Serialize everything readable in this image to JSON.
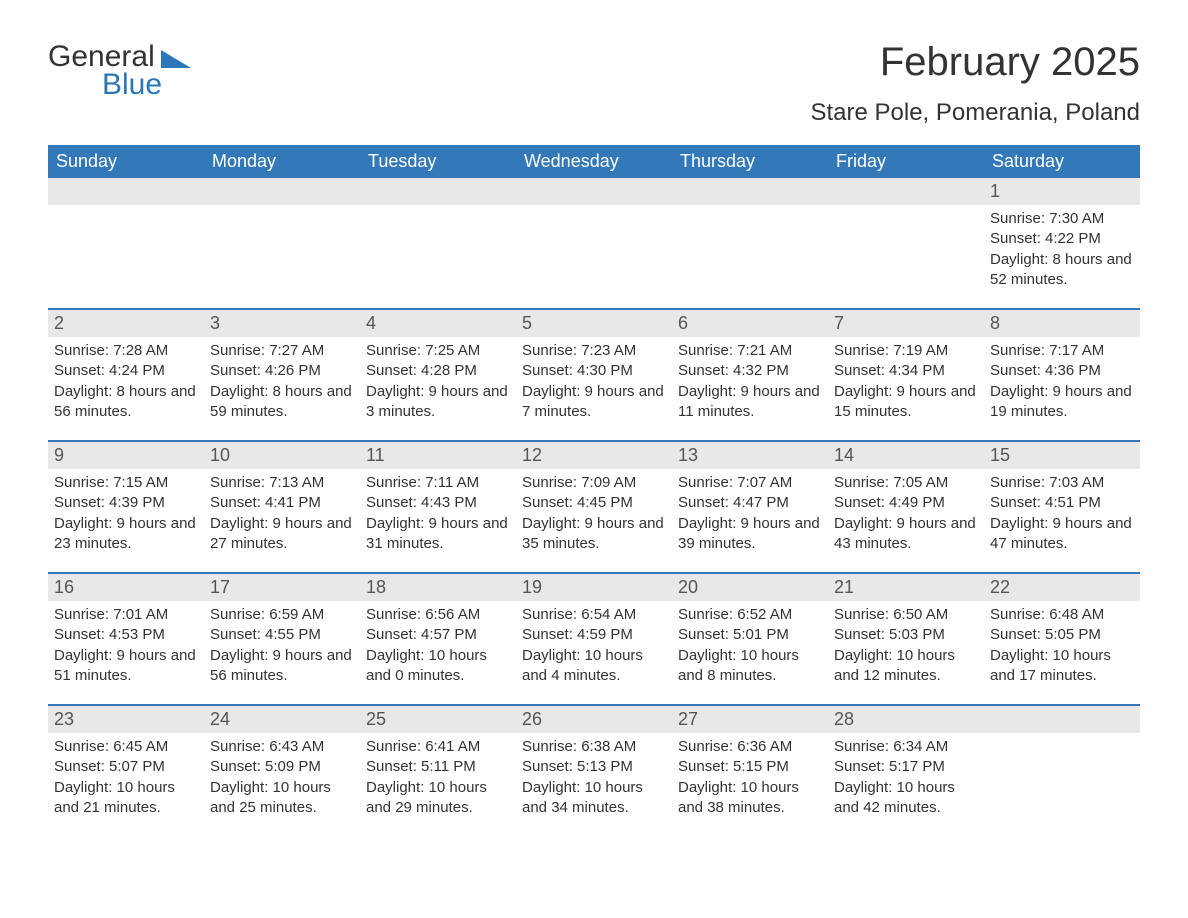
{
  "brand": {
    "general": "General",
    "blue": "Blue"
  },
  "title": "February 2025",
  "location": "Stare Pole, Pomerania, Poland",
  "colors": {
    "header_bg": "#3378b8",
    "header_text": "#ffffff",
    "daynum_bg": "#e8e8e8",
    "border": "#3378b8",
    "text": "#333333",
    "brand_blue": "#2b77b8",
    "background": "#ffffff"
  },
  "typography": {
    "title_fontsize": 40,
    "location_fontsize": 24,
    "weekday_fontsize": 18,
    "daynum_fontsize": 18,
    "body_fontsize": 15
  },
  "weekdays": [
    "Sunday",
    "Monday",
    "Tuesday",
    "Wednesday",
    "Thursday",
    "Friday",
    "Saturday"
  ],
  "weeks": [
    [
      {
        "n": "",
        "sunrise": "",
        "sunset": "",
        "daylight": ""
      },
      {
        "n": "",
        "sunrise": "",
        "sunset": "",
        "daylight": ""
      },
      {
        "n": "",
        "sunrise": "",
        "sunset": "",
        "daylight": ""
      },
      {
        "n": "",
        "sunrise": "",
        "sunset": "",
        "daylight": ""
      },
      {
        "n": "",
        "sunrise": "",
        "sunset": "",
        "daylight": ""
      },
      {
        "n": "",
        "sunrise": "",
        "sunset": "",
        "daylight": ""
      },
      {
        "n": "1",
        "sunrise": "Sunrise: 7:30 AM",
        "sunset": "Sunset: 4:22 PM",
        "daylight": "Daylight: 8 hours and 52 minutes."
      }
    ],
    [
      {
        "n": "2",
        "sunrise": "Sunrise: 7:28 AM",
        "sunset": "Sunset: 4:24 PM",
        "daylight": "Daylight: 8 hours and 56 minutes."
      },
      {
        "n": "3",
        "sunrise": "Sunrise: 7:27 AM",
        "sunset": "Sunset: 4:26 PM",
        "daylight": "Daylight: 8 hours and 59 minutes."
      },
      {
        "n": "4",
        "sunrise": "Sunrise: 7:25 AM",
        "sunset": "Sunset: 4:28 PM",
        "daylight": "Daylight: 9 hours and 3 minutes."
      },
      {
        "n": "5",
        "sunrise": "Sunrise: 7:23 AM",
        "sunset": "Sunset: 4:30 PM",
        "daylight": "Daylight: 9 hours and 7 minutes."
      },
      {
        "n": "6",
        "sunrise": "Sunrise: 7:21 AM",
        "sunset": "Sunset: 4:32 PM",
        "daylight": "Daylight: 9 hours and 11 minutes."
      },
      {
        "n": "7",
        "sunrise": "Sunrise: 7:19 AM",
        "sunset": "Sunset: 4:34 PM",
        "daylight": "Daylight: 9 hours and 15 minutes."
      },
      {
        "n": "8",
        "sunrise": "Sunrise: 7:17 AM",
        "sunset": "Sunset: 4:36 PM",
        "daylight": "Daylight: 9 hours and 19 minutes."
      }
    ],
    [
      {
        "n": "9",
        "sunrise": "Sunrise: 7:15 AM",
        "sunset": "Sunset: 4:39 PM",
        "daylight": "Daylight: 9 hours and 23 minutes."
      },
      {
        "n": "10",
        "sunrise": "Sunrise: 7:13 AM",
        "sunset": "Sunset: 4:41 PM",
        "daylight": "Daylight: 9 hours and 27 minutes."
      },
      {
        "n": "11",
        "sunrise": "Sunrise: 7:11 AM",
        "sunset": "Sunset: 4:43 PM",
        "daylight": "Daylight: 9 hours and 31 minutes."
      },
      {
        "n": "12",
        "sunrise": "Sunrise: 7:09 AM",
        "sunset": "Sunset: 4:45 PM",
        "daylight": "Daylight: 9 hours and 35 minutes."
      },
      {
        "n": "13",
        "sunrise": "Sunrise: 7:07 AM",
        "sunset": "Sunset: 4:47 PM",
        "daylight": "Daylight: 9 hours and 39 minutes."
      },
      {
        "n": "14",
        "sunrise": "Sunrise: 7:05 AM",
        "sunset": "Sunset: 4:49 PM",
        "daylight": "Daylight: 9 hours and 43 minutes."
      },
      {
        "n": "15",
        "sunrise": "Sunrise: 7:03 AM",
        "sunset": "Sunset: 4:51 PM",
        "daylight": "Daylight: 9 hours and 47 minutes."
      }
    ],
    [
      {
        "n": "16",
        "sunrise": "Sunrise: 7:01 AM",
        "sunset": "Sunset: 4:53 PM",
        "daylight": "Daylight: 9 hours and 51 minutes."
      },
      {
        "n": "17",
        "sunrise": "Sunrise: 6:59 AM",
        "sunset": "Sunset: 4:55 PM",
        "daylight": "Daylight: 9 hours and 56 minutes."
      },
      {
        "n": "18",
        "sunrise": "Sunrise: 6:56 AM",
        "sunset": "Sunset: 4:57 PM",
        "daylight": "Daylight: 10 hours and 0 minutes."
      },
      {
        "n": "19",
        "sunrise": "Sunrise: 6:54 AM",
        "sunset": "Sunset: 4:59 PM",
        "daylight": "Daylight: 10 hours and 4 minutes."
      },
      {
        "n": "20",
        "sunrise": "Sunrise: 6:52 AM",
        "sunset": "Sunset: 5:01 PM",
        "daylight": "Daylight: 10 hours and 8 minutes."
      },
      {
        "n": "21",
        "sunrise": "Sunrise: 6:50 AM",
        "sunset": "Sunset: 5:03 PM",
        "daylight": "Daylight: 10 hours and 12 minutes."
      },
      {
        "n": "22",
        "sunrise": "Sunrise: 6:48 AM",
        "sunset": "Sunset: 5:05 PM",
        "daylight": "Daylight: 10 hours and 17 minutes."
      }
    ],
    [
      {
        "n": "23",
        "sunrise": "Sunrise: 6:45 AM",
        "sunset": "Sunset: 5:07 PM",
        "daylight": "Daylight: 10 hours and 21 minutes."
      },
      {
        "n": "24",
        "sunrise": "Sunrise: 6:43 AM",
        "sunset": "Sunset: 5:09 PM",
        "daylight": "Daylight: 10 hours and 25 minutes."
      },
      {
        "n": "25",
        "sunrise": "Sunrise: 6:41 AM",
        "sunset": "Sunset: 5:11 PM",
        "daylight": "Daylight: 10 hours and 29 minutes."
      },
      {
        "n": "26",
        "sunrise": "Sunrise: 6:38 AM",
        "sunset": "Sunset: 5:13 PM",
        "daylight": "Daylight: 10 hours and 34 minutes."
      },
      {
        "n": "27",
        "sunrise": "Sunrise: 6:36 AM",
        "sunset": "Sunset: 5:15 PM",
        "daylight": "Daylight: 10 hours and 38 minutes."
      },
      {
        "n": "28",
        "sunrise": "Sunrise: 6:34 AM",
        "sunset": "Sunset: 5:17 PM",
        "daylight": "Daylight: 10 hours and 42 minutes."
      },
      {
        "n": "",
        "sunrise": "",
        "sunset": "",
        "daylight": ""
      }
    ]
  ]
}
